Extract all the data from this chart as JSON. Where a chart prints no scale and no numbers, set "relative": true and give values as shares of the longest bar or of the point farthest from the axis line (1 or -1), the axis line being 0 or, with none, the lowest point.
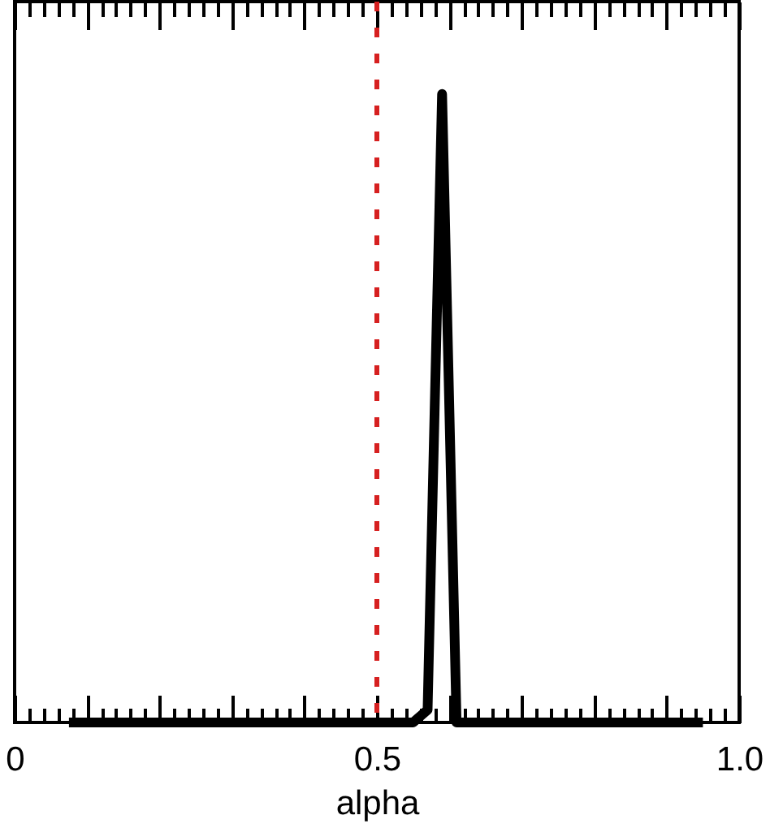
{
  "chart_data": {
    "type": "line",
    "xlabel": "alpha",
    "relative": true,
    "x": [
      0.075,
      0.55,
      0.57,
      0.59,
      0.61,
      0.95
    ],
    "series": [
      {
        "color": "#000000",
        "values": [
          0,
          0,
          0.02,
          1,
          0,
          0
        ]
      }
    ],
    "xlim": [
      0,
      1
    ],
    "xticks": [
      0,
      {
        "value": 0.02,
        "label": null
      },
      {
        "value": 0.04,
        "label": null
      },
      {
        "value": 0.06,
        "label": null
      },
      {
        "value": 0.08,
        "label": null
      },
      {
        "value": 0.1,
        "label": null
      },
      {
        "value": 0.12,
        "label": null
      },
      {
        "value": 0.14,
        "label": null
      },
      {
        "value": 0.16,
        "label": null
      },
      {
        "value": 0.18,
        "label": null
      },
      {
        "value": 0.2,
        "label": null
      },
      {
        "value": 0.22,
        "label": null
      },
      {
        "value": 0.24,
        "label": null
      },
      {
        "value": 0.26,
        "label": null
      },
      {
        "value": 0.28,
        "label": null
      },
      {
        "value": 0.3,
        "label": null
      },
      {
        "value": 0.32,
        "label": null
      },
      {
        "value": 0.34,
        "label": null
      },
      {
        "value": 0.36,
        "label": null
      },
      {
        "value": 0.38,
        "label": null
      },
      {
        "value": 0.4,
        "label": null
      },
      {
        "value": 0.42,
        "label": null
      },
      {
        "value": 0.44,
        "label": null
      },
      {
        "value": 0.46,
        "label": null
      },
      {
        "value": 0.48,
        "label": null
      },
      0.5,
      {
        "value": 0.52,
        "label": null
      },
      {
        "value": 0.54,
        "label": null
      },
      {
        "value": 0.56,
        "label": null
      },
      {
        "value": 0.58,
        "label": null
      },
      {
        "value": 0.6,
        "label": null
      },
      {
        "value": 0.62,
        "label": null
      },
      {
        "value": 0.64,
        "label": null
      },
      {
        "value": 0.66,
        "label": null
      },
      {
        "value": 0.68,
        "label": null
      },
      {
        "value": 0.7,
        "label": null
      },
      {
        "value": 0.72,
        "label": null
      },
      {
        "value": 0.74,
        "label": null
      },
      {
        "value": 0.76,
        "label": null
      },
      {
        "value": 0.78,
        "label": null
      },
      {
        "value": 0.8,
        "label": null
      },
      {
        "value": 0.82,
        "label": null
      },
      {
        "value": 0.84,
        "label": null
      },
      {
        "value": 0.86,
        "label": null
      },
      {
        "value": 0.88,
        "label": null
      },
      {
        "value": 0.9,
        "label": null
      },
      {
        "value": 0.92,
        "label": null
      },
      {
        "value": 0.94,
        "label": null
      },
      {
        "value": 0.96,
        "label": null
      },
      {
        "value": 0.98,
        "label": null
      },
      {
        "value": 1,
        "label": "1.0"
      }
    ],
    "ref_lines": [
      {
        "axis": "x",
        "value": 0.5,
        "color": "#d62020",
        "line_style": "dashed"
      }
    ],
    "line_style": "solid"
  }
}
